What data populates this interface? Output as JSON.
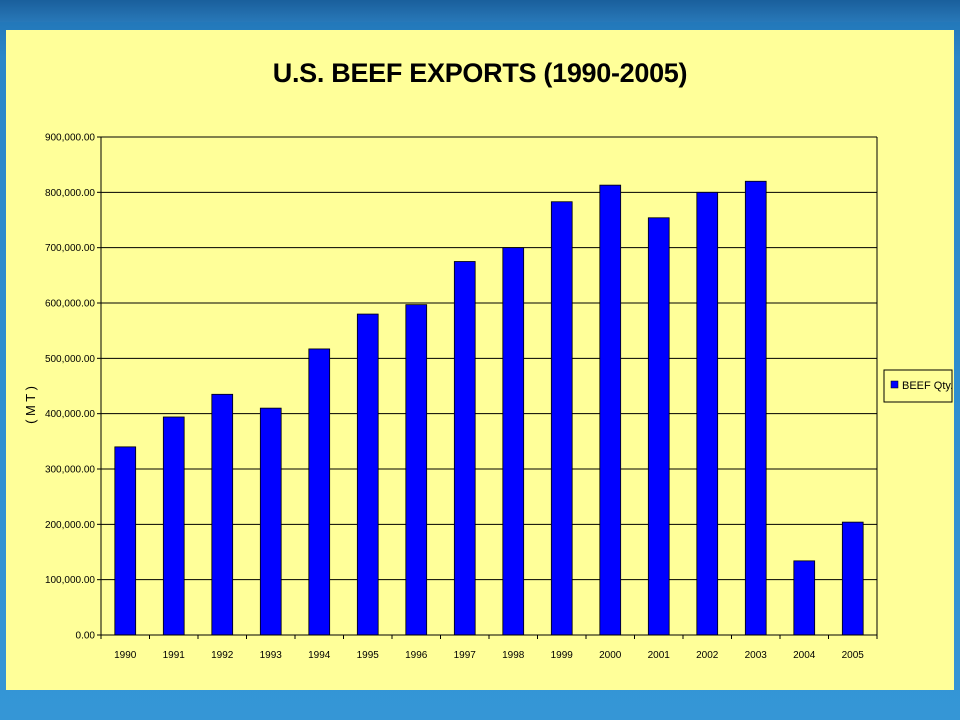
{
  "colors": {
    "slide_background": "#2a86c8",
    "chart_background": "#ffff99",
    "bar_fill": "#0000ff",
    "bar_stroke": "#000000",
    "gridline": "#000000"
  },
  "chart_data": {
    "type": "bar",
    "title": "U.S. BEEF EXPORTS (1990-2005)",
    "xlabel": "",
    "ylabel": "( M T )",
    "ylim": [
      0,
      900000
    ],
    "y_ticks": [
      0,
      100000,
      200000,
      300000,
      400000,
      500000,
      600000,
      700000,
      800000,
      900000
    ],
    "y_tick_labels": [
      "0.00",
      "100,000.00",
      "200,000.00",
      "300,000.00",
      "400,000.00",
      "500,000.00",
      "600,000.00",
      "700,000.00",
      "800,000.00",
      "900,000.00"
    ],
    "grid": true,
    "legend_position": "right",
    "categories": [
      "1990",
      "1991",
      "1992",
      "1993",
      "1994",
      "1995",
      "1996",
      "1997",
      "1998",
      "1999",
      "2000",
      "2001",
      "2002",
      "2003",
      "2004",
      "2005"
    ],
    "series": [
      {
        "name": "BEEF Qty.",
        "color": "#0000ff",
        "values": [
          340000,
          394000,
          435000,
          410000,
          517000,
          580000,
          597000,
          675000,
          700000,
          783000,
          813000,
          754000,
          800000,
          820000,
          134000,
          204000
        ]
      }
    ]
  }
}
